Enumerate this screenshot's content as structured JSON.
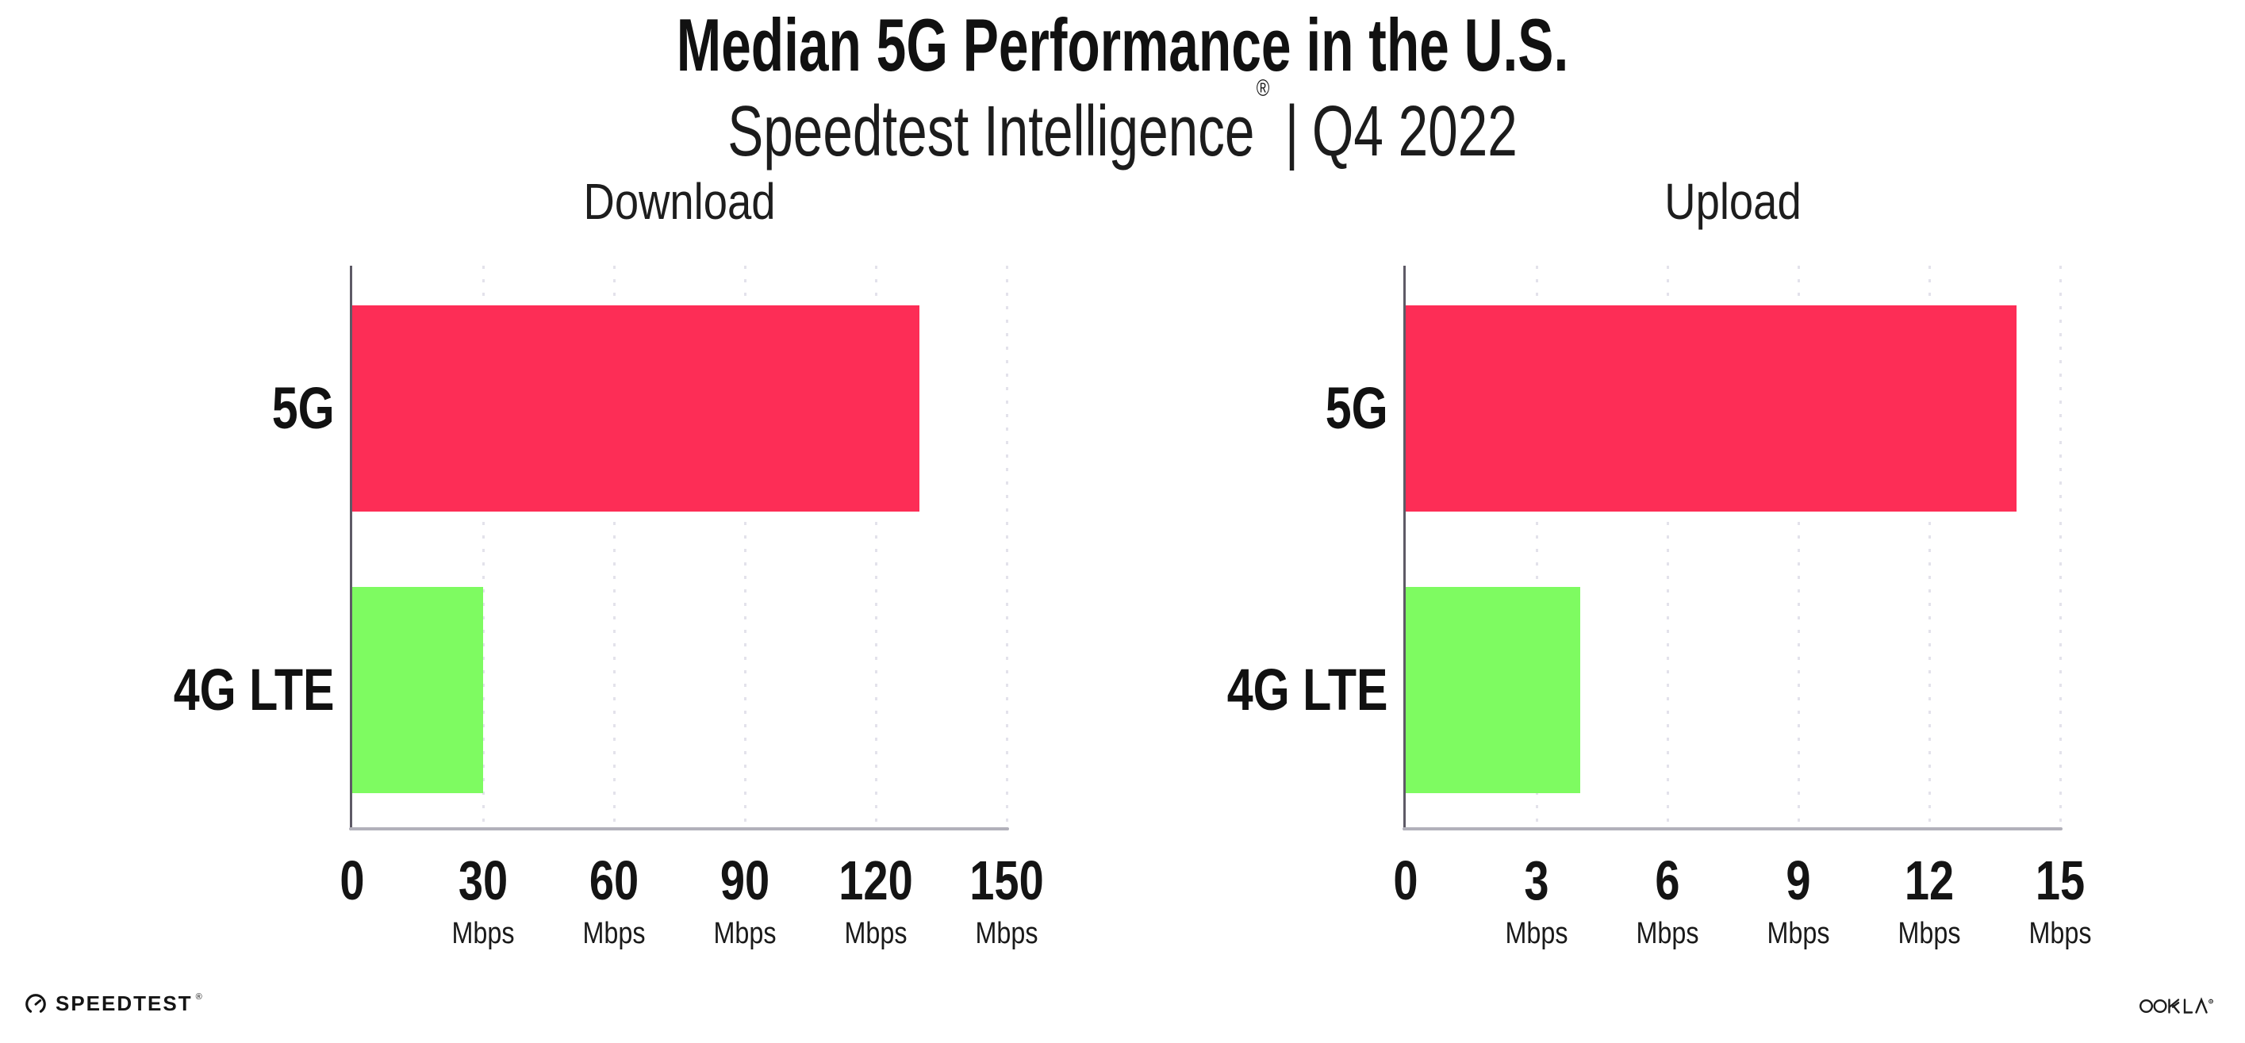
{
  "header": {
    "title": "Median 5G Performance in the U.S.",
    "subtitle": {
      "product": "Speedtest Intelligence",
      "registered_mark": "®",
      "separator": "|",
      "period": "Q4 2022"
    }
  },
  "footer": {
    "speedtest": {
      "label": "SPEEDTEST",
      "trademark": "®",
      "icon": "speedtest-gauge-icon"
    },
    "ookla": {
      "label": "OOKLA",
      "trademark": "®",
      "icon": "ookla-wordmark"
    }
  },
  "colors": {
    "bar_5g": "#FD2D56",
    "bar_4g_lte": "#7EFB61",
    "grid": "#E3E2EB",
    "x_axis": "#B2B1BA",
    "y_axis": "#5E5A66",
    "text": "#141414",
    "background": "#FFFFFF"
  },
  "chart_data": [
    {
      "type": "bar",
      "orientation": "horizontal",
      "title": "Download",
      "categories": [
        "5G",
        "4G LTE"
      ],
      "values": [
        130,
        30
      ],
      "unit": "Mbps",
      "xlim": [
        0,
        150
      ],
      "xticks": [
        0,
        30,
        60,
        90,
        120,
        150
      ],
      "tick_unit_label": "Mbps",
      "bar_colors": [
        "#FD2D56",
        "#7EFB61"
      ],
      "grid": true,
      "legend": false
    },
    {
      "type": "bar",
      "orientation": "horizontal",
      "title": "Upload",
      "categories": [
        "5G",
        "4G LTE"
      ],
      "values": [
        14,
        4
      ],
      "unit": "Mbps",
      "xlim": [
        0,
        15
      ],
      "xticks": [
        0,
        3,
        6,
        9,
        12,
        15
      ],
      "tick_unit_label": "Mbps",
      "bar_colors": [
        "#FD2D56",
        "#7EFB61"
      ],
      "grid": true,
      "legend": false
    }
  ]
}
